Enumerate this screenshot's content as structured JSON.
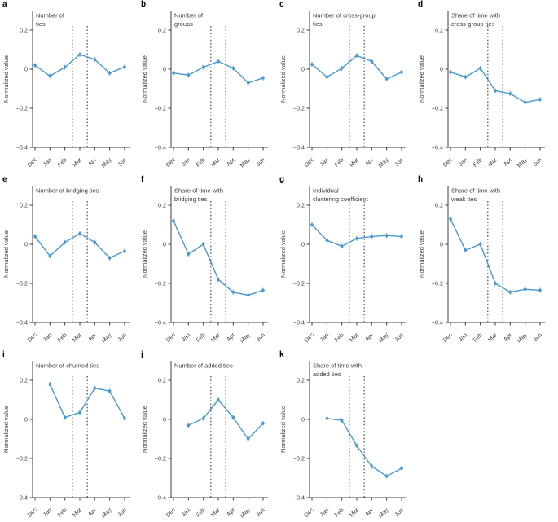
{
  "figure": {
    "ylabel": "Normalized value",
    "months": [
      "Dec",
      "Jan",
      "Feb",
      "Mar",
      "Apr",
      "May",
      "Jun"
    ],
    "yticks": [
      0.2,
      0,
      -0.2,
      -0.4
    ],
    "ytick_labels": [
      "0.2",
      "0",
      "−0.2",
      "−0.4"
    ],
    "ylim": [
      -0.4,
      0.3
    ],
    "vlines": [
      2.5,
      3.5
    ],
    "line_color": "#4599d2",
    "vline_color": "#3a3a3a",
    "axis_color": "#3d3d3d",
    "text_color": "#3d3d3d",
    "error_halfwidth": 0.012
  },
  "chart_data": [
    {
      "type": "line",
      "panel_letter": "a",
      "title": "Number of ties",
      "title_lines": [
        "Number of",
        "ties"
      ],
      "categories": [
        "Dec",
        "Jan",
        "Feb",
        "Mar",
        "Apr",
        "May",
        "Jun"
      ],
      "values": [
        0.02,
        -0.035,
        0.01,
        0.075,
        0.05,
        -0.02,
        0.012
      ],
      "ylabel": "Normalized value",
      "ylim": [
        -0.4,
        0.3
      ],
      "vlines": [
        2.5,
        3.5
      ]
    },
    {
      "type": "line",
      "panel_letter": "b",
      "title": "Number of groups",
      "title_lines": [
        "Number of",
        "groups"
      ],
      "categories": [
        "Dec",
        "Jan",
        "Feb",
        "Mar",
        "Apr",
        "May",
        "Jun"
      ],
      "values": [
        -0.02,
        -0.03,
        0.01,
        0.04,
        0.005,
        -0.07,
        -0.045
      ],
      "ylabel": "Normalized value",
      "ylim": [
        -0.4,
        0.3
      ],
      "vlines": [
        2.5,
        3.5
      ]
    },
    {
      "type": "line",
      "panel_letter": "c",
      "title": "Number of cross-group ties",
      "title_lines": [
        "Number of cross-group",
        "ties"
      ],
      "categories": [
        "Dec",
        "Jan",
        "Feb",
        "Mar",
        "Apr",
        "May",
        "Jun"
      ],
      "values": [
        0.025,
        -0.04,
        0.005,
        0.07,
        0.04,
        -0.05,
        -0.015
      ],
      "ylabel": "Normalized value",
      "ylim": [
        -0.4,
        0.3
      ],
      "vlines": [
        2.5,
        3.5
      ]
    },
    {
      "type": "line",
      "panel_letter": "d",
      "title": "Share of time with cross-group ties",
      "title_lines": [
        "Share of time with",
        "cross-group ties"
      ],
      "categories": [
        "Dec",
        "Jan",
        "Feb",
        "Mar",
        "Apr",
        "May",
        "Jun"
      ],
      "values": [
        -0.015,
        -0.04,
        0.005,
        -0.11,
        -0.125,
        -0.17,
        -0.155
      ],
      "ylabel": "Normalized value",
      "ylim": [
        -0.4,
        0.3
      ],
      "vlines": [
        2.5,
        3.5
      ]
    },
    {
      "type": "line",
      "panel_letter": "e",
      "title": "Number of bridging ties",
      "title_lines": [
        "Number of bridging ties"
      ],
      "categories": [
        "Dec",
        "Jan",
        "Feb",
        "Mar",
        "Apr",
        "May",
        "Jun"
      ],
      "values": [
        0.04,
        -0.06,
        0.01,
        0.055,
        0.01,
        -0.07,
        -0.035
      ],
      "ylabel": "Normalized value",
      "ylim": [
        -0.4,
        0.3
      ],
      "vlines": [
        2.5,
        3.5
      ]
    },
    {
      "type": "line",
      "panel_letter": "f",
      "title": "Share of time with bridging ties",
      "title_lines": [
        "Share of time with",
        "bridging ties"
      ],
      "categories": [
        "Dec",
        "Jan",
        "Feb",
        "Mar",
        "Apr",
        "May",
        "Jun"
      ],
      "values": [
        0.12,
        -0.05,
        0.0,
        -0.18,
        -0.245,
        -0.26,
        -0.235
      ],
      "ylabel": "Normalized value",
      "ylim": [
        -0.4,
        0.3
      ],
      "vlines": [
        2.5,
        3.5
      ]
    },
    {
      "type": "line",
      "panel_letter": "g",
      "title": "Individual clustering coefficient",
      "title_lines": [
        "Individual",
        "clustering coefficient"
      ],
      "categories": [
        "Dec",
        "Jan",
        "Feb",
        "Mar",
        "Apr",
        "May",
        "Jun"
      ],
      "values": [
        0.1,
        0.02,
        -0.01,
        0.03,
        0.04,
        0.045,
        0.04
      ],
      "ylabel": "Normalized value",
      "ylim": [
        -0.4,
        0.3
      ],
      "vlines": [
        2.5,
        3.5
      ]
    },
    {
      "type": "line",
      "panel_letter": "h",
      "title": "Share of time with weak ties",
      "title_lines": [
        "Share of time with",
        "weak ties"
      ],
      "categories": [
        "Dec",
        "Jan",
        "Feb",
        "Mar",
        "Apr",
        "May",
        "Jun"
      ],
      "values": [
        0.13,
        -0.03,
        0.0,
        -0.2,
        -0.245,
        -0.23,
        -0.235
      ],
      "ylabel": "Normalized value",
      "ylim": [
        -0.4,
        0.3
      ],
      "vlines": [
        2.5,
        3.5
      ]
    },
    {
      "type": "line",
      "panel_letter": "i",
      "title": "Number of churned ties",
      "title_lines": [
        "Number of churned ties"
      ],
      "categories": [
        "Dec",
        "Jan",
        "Feb",
        "Mar",
        "Apr",
        "May",
        "Jun"
      ],
      "values": [
        null,
        0.18,
        0.01,
        0.035,
        0.16,
        0.145,
        0.005
      ],
      "ylabel": "Normalized value",
      "ylim": [
        -0.4,
        0.3
      ],
      "vlines": [
        2.5,
        3.5
      ]
    },
    {
      "type": "line",
      "panel_letter": "j",
      "title": "Number of added ties",
      "title_lines": [
        "Number of added ties"
      ],
      "categories": [
        "Dec",
        "Jan",
        "Feb",
        "Mar",
        "Apr",
        "May",
        "Jun"
      ],
      "values": [
        null,
        -0.03,
        0.005,
        0.1,
        0.01,
        -0.1,
        -0.02
      ],
      "ylabel": "Normalized value",
      "ylim": [
        -0.4,
        0.3
      ],
      "vlines": [
        2.5,
        3.5
      ]
    },
    {
      "type": "line",
      "panel_letter": "k",
      "title": "Share of time with added ties",
      "title_lines": [
        "Share of time with",
        "added ties"
      ],
      "categories": [
        "Dec",
        "Jan",
        "Feb",
        "Mar",
        "Apr",
        "May",
        "Jun"
      ],
      "values": [
        null,
        0.005,
        -0.005,
        -0.135,
        -0.24,
        -0.29,
        -0.25
      ],
      "ylabel": "Normalized value",
      "ylim": [
        -0.4,
        0.3
      ],
      "vlines": [
        2.5,
        3.5
      ]
    }
  ]
}
